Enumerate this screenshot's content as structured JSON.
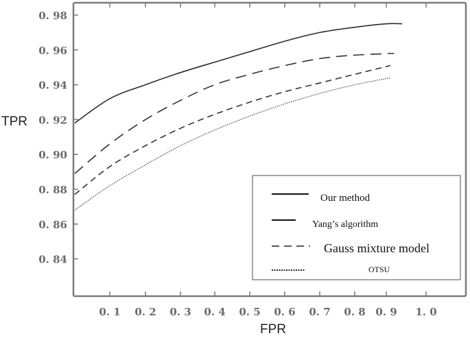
{
  "chart_data": {
    "type": "line",
    "title": "",
    "xlabel": "FPR",
    "ylabel": "TPR",
    "xlim": [
      0,
      1.1
    ],
    "ylim": [
      0.82,
      0.985
    ],
    "grid": false,
    "legend_position": "lower right",
    "x_ticks": [
      "0.1",
      "0.2",
      "0.3",
      "0.4",
      "0.5",
      "0.6",
      "0.7",
      "0.8",
      "0.9",
      "1.0"
    ],
    "y_ticks": [
      "0.98",
      "0.96",
      "0.94",
      "0.92",
      "0.90",
      "0.88",
      "0.86",
      "0.84"
    ],
    "series": [
      {
        "name": "Our method",
        "style": "solid",
        "x": [
          0,
          0.1,
          0.2,
          0.3,
          0.4,
          0.5,
          0.6,
          0.7,
          0.8,
          0.9,
          0.94
        ],
        "values": [
          0.918,
          0.932,
          0.94,
          0.947,
          0.953,
          0.959,
          0.965,
          0.97,
          0.973,
          0.975,
          0.975
        ]
      },
      {
        "name": "Yang's algorithm",
        "style": "long-dash",
        "x": [
          0,
          0.1,
          0.2,
          0.3,
          0.4,
          0.5,
          0.6,
          0.7,
          0.8,
          0.92
        ],
        "values": [
          0.889,
          0.906,
          0.92,
          0.931,
          0.94,
          0.946,
          0.951,
          0.955,
          0.957,
          0.958
        ]
      },
      {
        "name": "Gauss mixture model",
        "style": "short-dash",
        "x": [
          0,
          0.1,
          0.2,
          0.3,
          0.4,
          0.5,
          0.6,
          0.7,
          0.8,
          0.91
        ],
        "values": [
          0.877,
          0.893,
          0.905,
          0.915,
          0.923,
          0.93,
          0.936,
          0.941,
          0.946,
          0.951
        ]
      },
      {
        "name": "OTSU",
        "style": "dotted",
        "x": [
          0,
          0.1,
          0.2,
          0.3,
          0.4,
          0.5,
          0.6,
          0.7,
          0.8,
          0.91
        ],
        "values": [
          0.868,
          0.882,
          0.894,
          0.905,
          0.914,
          0.922,
          0.929,
          0.935,
          0.94,
          0.944
        ]
      }
    ]
  },
  "legend": {
    "items": [
      {
        "label": "Our method"
      },
      {
        "label": "Yang’s algorithm"
      },
      {
        "label": "Gauss mixture model"
      },
      {
        "label": "OTSU"
      }
    ]
  },
  "axes": {
    "xlabel": "FPR",
    "ylabel": "TPR"
  },
  "colors": {
    "axis": "#7a7a7a",
    "line": "#333333",
    "tick_text": "#6a6a6a"
  }
}
